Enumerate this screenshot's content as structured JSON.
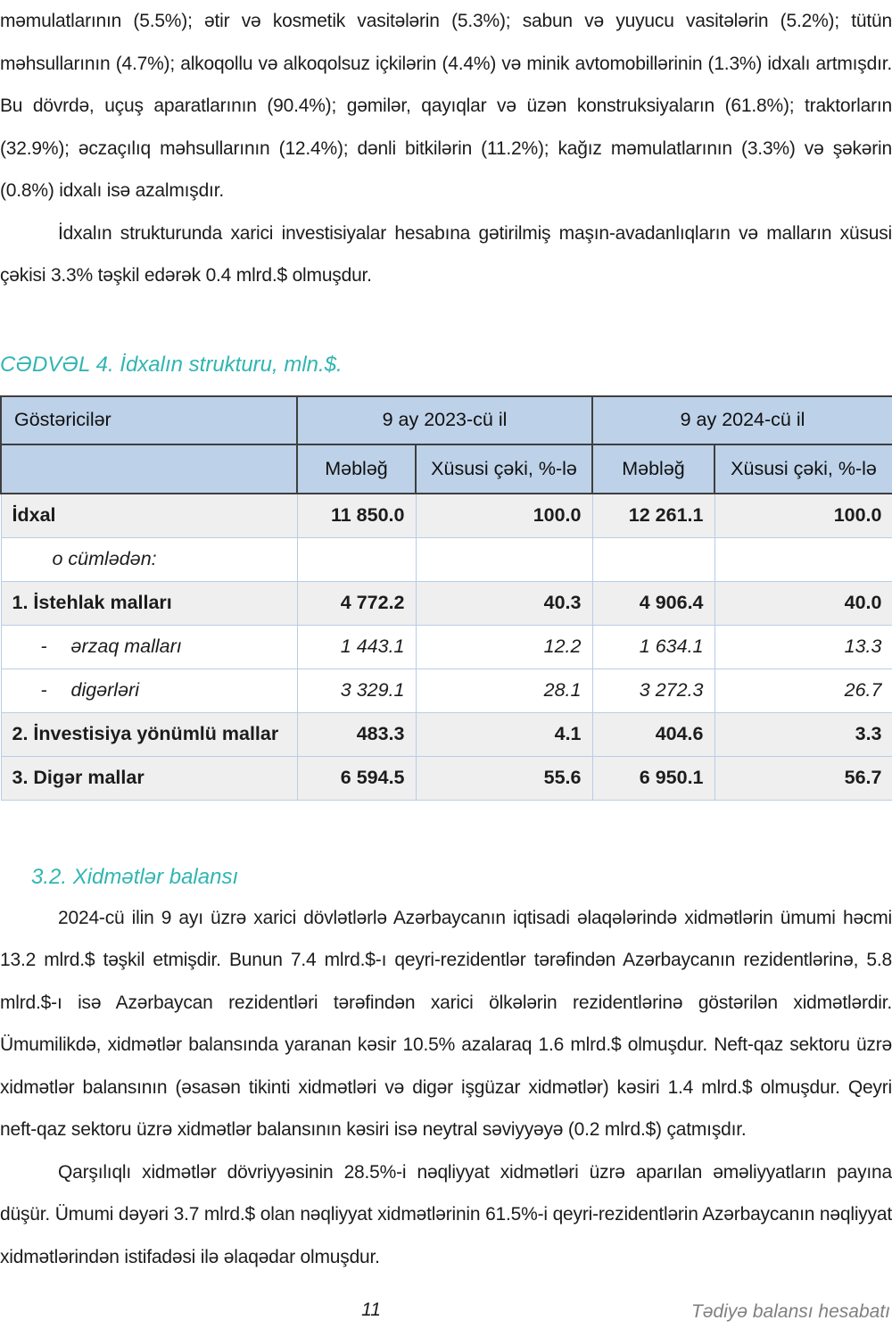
{
  "document": {
    "paragraphs": {
      "p1": "məmulatlarının (5.5%); ətir və kosmetik vasitələrin (5.3%); sabun və yuyucu vasitələrin (5.2%); tütün məhsullarının (4.7%); alkoqollu və alkoqolsuz içkilərin (4.4%) və minik avtomobillərinin (1.3%) idxalı artmışdır. Bu dövrdə, uçuş aparatlarının (90.4%); gəmilər, qayıqlar və üzən konstruksiyaların (61.8%); traktorların (32.9%); əczaçılıq məhsullarının (12.4%); dənli bitkilərin (11.2%);  kağız məmulatlarının (3.3%) və şəkərin (0.8%) idxalı isə azalmışdır.",
      "p2": "İdxalın strukturunda xarici investisiyalar hesabına gətirilmiş maşın-avadanlıqların və malların xüsusi çəkisi 3.3% təşkil edərək 0.4 mlrd.$ olmuşdur.",
      "p3": "2024-cü ilin 9 ayı üzrə xarici dövlətlərlə Azərbaycanın iqtisadi əlaqələrində xidmətlərin ümumi həcmi 13.2 mlrd.$ təşkil etmişdir. Bunun 7.4 mlrd.$-ı qeyri-rezidentlər tərəfindən Azərbaycanın rezidentlərinə, 5.8 mlrd.$-ı isə Azərbaycan rezidentləri tərəfindən xarici ölkələrin rezidentlərinə göstərilən xidmətlərdir. Ümumilikdə, xidmətlər balansında yaranan kəsir 10.5%  azalaraq 1.6 mlrd.$ olmuşdur. Neft-qaz sektoru üzrə xidmətlər balansının (əsasən tikinti xidmətləri və digər işgüzar xidmətlər) kəsiri 1.4 mlrd.$ olmuşdur. Qeyri neft-qaz sektoru üzrə xidmətlər balansının kəsiri isə neytral səviyyəyə (0.2 mlrd.$) çatmışdır.",
      "p4": "Qarşılıqlı xidmətlər dövriyyəsinin 28.5%-i nəqliyyat xidmətləri üzrə aparılan əməliyyatların payına düşür. Ümumi dəyəri 3.7 mlrd.$ olan nəqliyyat xidmətlərinin 61.5%-i qeyri-rezidentlərin Azərbaycanın nəqliyyat xidmətlərindən istifadəsi ilə əlaqədar olmuşdur."
    },
    "table_title": "CƏDVƏL 4. İdxalın strukturu, mln.$.",
    "section_heading": "3.2. Xidmətlər balansı",
    "footer": {
      "page_number": "11",
      "report_title": "Tədiyə balansı hesabatı"
    },
    "colors": {
      "heading_teal": "#31b5b2",
      "table_header_blue": "#bdd1e8",
      "table_row_gray": "#efefef",
      "table_body_border": "#b9cde6",
      "footer_gray": "#7f7f7f"
    }
  },
  "table": {
    "header": {
      "label_col": "Göstəricilər",
      "group_2023": "9 ay 2023-cü il",
      "group_2024": "9 ay 2024-cü il",
      "sub_cols": [
        "Məbləğ",
        "Xüsusi çəki, %-lə",
        "Məbləğ",
        "Xüsusi çəki, %-lə"
      ]
    },
    "rows": [
      {
        "bullet": "",
        "label": "İdxal",
        "values": [
          "11 850.0",
          "100.0",
          "12 261.1",
          "100.0"
        ]
      },
      {
        "bullet": "",
        "label": "o cümlədən:",
        "values": [
          "",
          "",
          "",
          ""
        ]
      },
      {
        "bullet": "",
        "label": "1. İstehlak malları",
        "values": [
          "4 772.2",
          "40.3",
          "4 906.4",
          "40.0"
        ]
      },
      {
        "bullet": "-",
        "label": "ərzaq malları",
        "values": [
          "1 443.1",
          "12.2",
          "1 634.1",
          "13.3"
        ]
      },
      {
        "bullet": "-",
        "label": "digərləri",
        "values": [
          "3 329.1",
          "28.1",
          "3 272.3",
          "26.7"
        ]
      },
      {
        "bullet": "",
        "label": "2. İnvestisiya yönümlü mallar",
        "values": [
          "483.3",
          "4.1",
          "404.6",
          "3.3"
        ]
      },
      {
        "bullet": "",
        "label": "3. Digər mallar",
        "values": [
          "6 594.5",
          "55.6",
          "6 950.1",
          "56.7"
        ]
      }
    ]
  }
}
